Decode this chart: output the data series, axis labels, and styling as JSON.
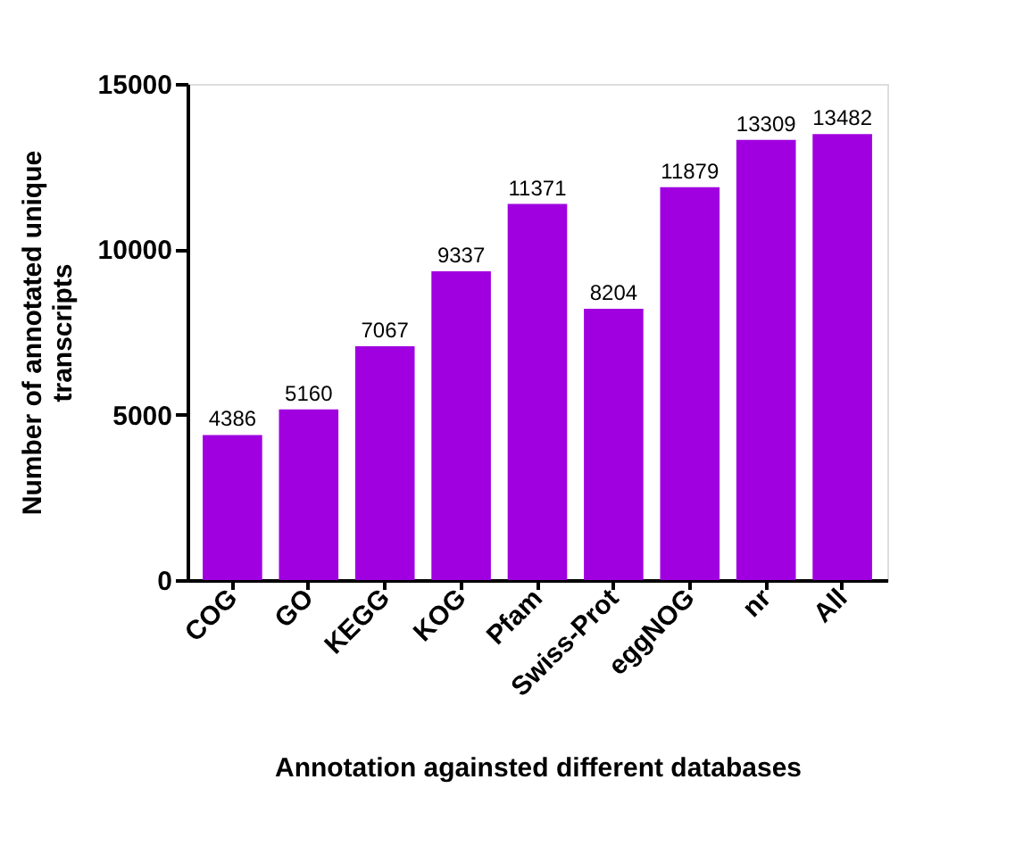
{
  "chart_data": {
    "type": "bar",
    "xlabel": "Annotation againsted different databases",
    "ylabel": "Number of annotated unique transcripts",
    "categories": [
      "COG",
      "GO",
      "KEGG",
      "KOG",
      "Pfam",
      "Swiss-Prot",
      "eggNOG",
      "nr",
      "All"
    ],
    "values": [
      4386,
      5160,
      7067,
      9337,
      11371,
      8204,
      11879,
      13309,
      13482
    ],
    "color": "#a000e0",
    "ylim": [
      0,
      15000
    ],
    "yticks": [
      0,
      5000,
      10000,
      15000
    ],
    "grid": false,
    "data_labels": true
  }
}
